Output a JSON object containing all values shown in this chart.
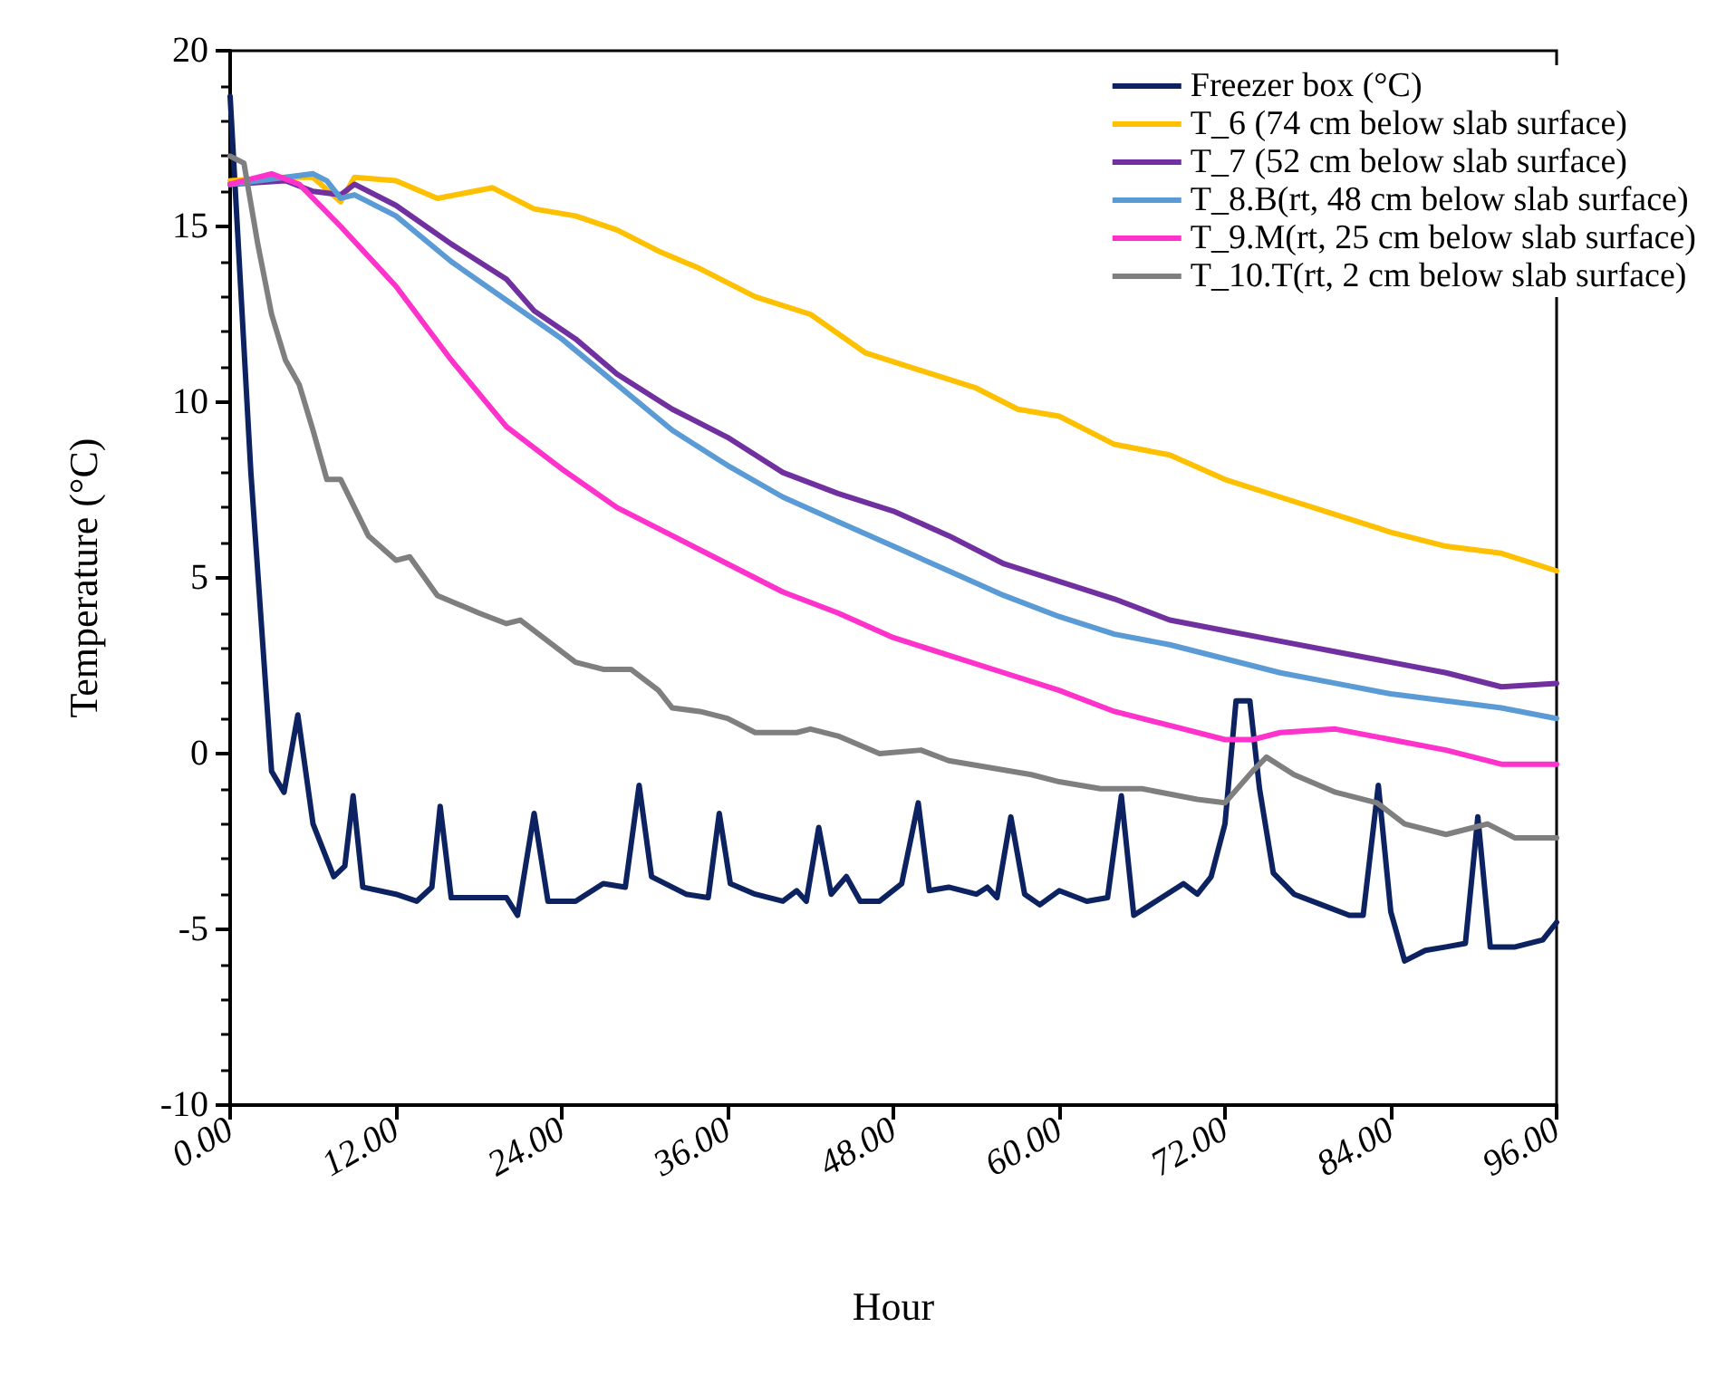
{
  "chart_data": {
    "type": "line",
    "xlabel": "Hour",
    "ylabel": "Temperature (°C)",
    "xlim": [
      0,
      96
    ],
    "ylim": [
      -10,
      20
    ],
    "xticks": [
      {
        "value": 0,
        "label": "0.00"
      },
      {
        "value": 12,
        "label": "12.00"
      },
      {
        "value": 24,
        "label": "24.00"
      },
      {
        "value": 36,
        "label": "36.00"
      },
      {
        "value": 48,
        "label": "48.00"
      },
      {
        "value": 60,
        "label": "60.00"
      },
      {
        "value": 72,
        "label": "72.00"
      },
      {
        "value": 84,
        "label": "84.00"
      },
      {
        "value": 96,
        "label": "96.00"
      }
    ],
    "yticks": [
      -10,
      -5,
      0,
      5,
      10,
      15,
      20
    ],
    "grid": false,
    "legend": "top right",
    "marker": "none",
    "line_style": "solid",
    "series": [
      {
        "name": "Freezer box (°C)",
        "color": "#0d2260",
        "x": [
          0,
          1.5,
          3,
          3.9,
          4.9,
          6,
          7.5,
          8.3,
          8.9,
          9.6,
          12,
          13.5,
          14.6,
          15.2,
          16,
          18,
          20,
          20.8,
          22,
          23,
          25,
          27,
          28.6,
          29.6,
          30.5,
          33,
          34.6,
          35.4,
          36.2,
          38,
          40,
          41,
          41.7,
          42.6,
          43.5,
          44.6,
          45.6,
          47,
          48.6,
          49.8,
          50.6,
          52,
          54,
          54.8,
          55.5,
          56.5,
          57.5,
          58.6,
          60,
          62,
          63.5,
          64.5,
          65.4,
          67,
          69,
          70,
          71,
          72,
          72.8,
          73.8,
          74.5,
          75.5,
          77,
          79,
          81,
          82,
          83.1,
          84,
          85,
          86.5,
          88,
          89.4,
          90.3,
          91.2,
          93,
          95,
          96
        ],
        "values": [
          18.7,
          8,
          -0.5,
          -1.1,
          1.1,
          -2,
          -3.5,
          -3.2,
          -1.2,
          -3.8,
          -4,
          -4.2,
          -3.8,
          -1.5,
          -4.1,
          -4.1,
          -4.1,
          -4.6,
          -1.7,
          -4.2,
          -4.2,
          -3.7,
          -3.8,
          -0.9,
          -3.5,
          -4,
          -4.1,
          -1.7,
          -3.7,
          -4,
          -4.2,
          -3.9,
          -4.2,
          -2.1,
          -4,
          -3.5,
          -4.2,
          -4.2,
          -3.7,
          -1.4,
          -3.9,
          -3.8,
          -4,
          -3.8,
          -4.1,
          -1.8,
          -4,
          -4.3,
          -3.9,
          -4.2,
          -4.1,
          -1.2,
          -4.6,
          -4.2,
          -3.7,
          -4,
          -3.5,
          -2,
          1.5,
          1.5,
          -1,
          -3.4,
          -4,
          -4.3,
          -4.6,
          -4.6,
          -0.9,
          -4.5,
          -5.9,
          -5.6,
          -5.5,
          -5.4,
          -1.8,
          -5.5,
          -5.5,
          -5.3,
          -4.8
        ]
      },
      {
        "name": "T_6 (74 cm below slab surface)",
        "color": "#ffc000",
        "x": [
          0,
          4,
          6,
          8,
          9,
          12,
          15,
          19,
          22,
          25,
          28,
          31,
          34,
          38,
          42,
          46,
          50,
          54,
          57,
          60,
          64,
          68,
          72,
          76,
          80,
          84,
          88,
          92,
          96
        ],
        "values": [
          16.3,
          16.4,
          16.4,
          15.7,
          16.4,
          16.3,
          15.8,
          16.1,
          15.5,
          15.3,
          14.9,
          14.3,
          13.8,
          13,
          12.5,
          11.4,
          10.9,
          10.4,
          9.8,
          9.6,
          8.8,
          8.5,
          7.8,
          7.3,
          6.8,
          6.3,
          5.9,
          5.7,
          5.2
        ]
      },
      {
        "name": "T_7 (52 cm below slab surface)",
        "color": "#7030a0",
        "x": [
          0,
          4,
          6,
          8,
          9,
          12,
          16,
          20,
          22,
          25,
          28,
          32,
          36,
          40,
          44,
          48,
          52,
          56,
          60,
          64,
          68,
          72,
          76,
          80,
          84,
          88,
          92,
          96
        ],
        "values": [
          16.2,
          16.3,
          16,
          15.9,
          16.2,
          15.6,
          14.5,
          13.5,
          12.6,
          11.8,
          10.8,
          9.8,
          9,
          8,
          7.4,
          6.9,
          6.2,
          5.4,
          4.9,
          4.4,
          3.8,
          3.5,
          3.2,
          2.9,
          2.6,
          2.3,
          1.9,
          2
        ]
      },
      {
        "name": "T_8.B(rt, 48 cm below slab surface)",
        "color": "#5b9bd5",
        "x": [
          0,
          4,
          6,
          7,
          8,
          9,
          12,
          16,
          20,
          24,
          28,
          32,
          36,
          40,
          44,
          48,
          52,
          56,
          60,
          64,
          68,
          72,
          76,
          80,
          84,
          88,
          92,
          96
        ],
        "values": [
          16.2,
          16.4,
          16.5,
          16.3,
          15.8,
          15.9,
          15.3,
          14,
          12.9,
          11.8,
          10.5,
          9.2,
          8.2,
          7.3,
          6.6,
          5.9,
          5.2,
          4.5,
          3.9,
          3.4,
          3.1,
          2.7,
          2.3,
          2,
          1.7,
          1.5,
          1.3,
          1
        ]
      },
      {
        "name": "T_9.M(rt, 25 cm below slab surface)",
        "color": "#ff33cc",
        "x": [
          0,
          3,
          5,
          8,
          12,
          16,
          20,
          24,
          28,
          32,
          36,
          40,
          44,
          48,
          52,
          56,
          60,
          64,
          68,
          72,
          74,
          76,
          80,
          84,
          88,
          92,
          96
        ],
        "values": [
          16.2,
          16.5,
          16.2,
          15,
          13.3,
          11.2,
          9.3,
          8.1,
          7,
          6.2,
          5.4,
          4.6,
          4,
          3.3,
          2.8,
          2.3,
          1.8,
          1.2,
          0.8,
          0.4,
          0.4,
          0.6,
          0.7,
          0.4,
          0.1,
          -0.3,
          -0.3
        ]
      },
      {
        "name": "T_10.T(rt, 2 cm below slab surface)",
        "color": "#7f7f7f",
        "x": [
          0,
          1,
          2,
          3,
          4,
          5,
          6,
          7,
          8,
          10,
          12,
          13,
          15,
          18,
          20,
          21,
          23,
          25,
          27,
          29,
          31,
          32,
          34,
          36,
          38,
          41,
          42,
          44,
          47,
          50,
          52,
          55,
          58,
          60,
          63,
          66,
          70,
          72,
          74,
          75,
          77,
          80,
          83,
          85,
          88,
          90,
          91,
          93,
          96
        ],
        "values": [
          17,
          16.8,
          14.5,
          12.5,
          11.2,
          10.5,
          9.2,
          7.8,
          7.8,
          6.2,
          5.5,
          5.6,
          4.5,
          4,
          3.7,
          3.8,
          3.2,
          2.6,
          2.4,
          2.4,
          1.8,
          1.3,
          1.2,
          1,
          0.6,
          0.6,
          0.7,
          0.5,
          0,
          0.1,
          -0.2,
          -0.4,
          -0.6,
          -0.8,
          -1,
          -1,
          -1.3,
          -1.4,
          -0.5,
          -0.1,
          -0.6,
          -1.1,
          -1.4,
          -2,
          -2.3,
          -2.1,
          -2,
          -2.4,
          -2.4
        ]
      }
    ]
  }
}
